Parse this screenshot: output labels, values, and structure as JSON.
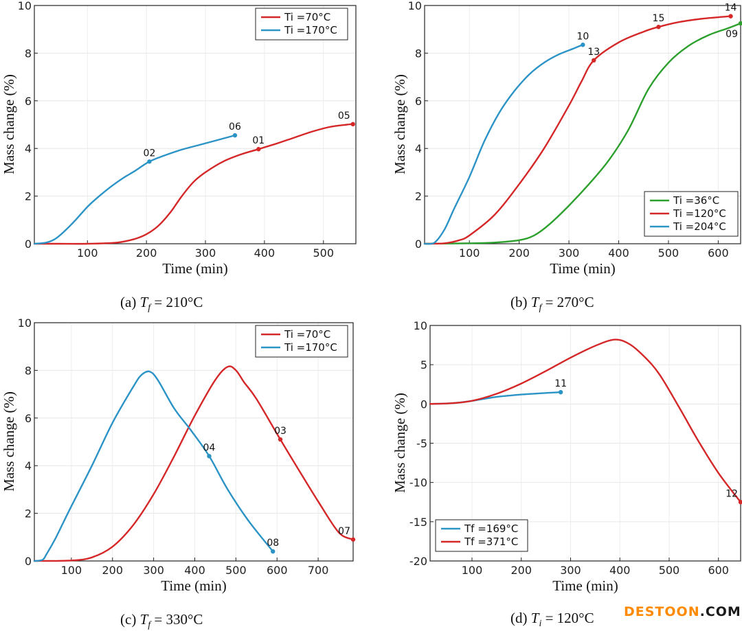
{
  "chart_data": [
    {
      "type": "line",
      "panel": "a",
      "caption": {
        "prefix": "(a)",
        "var": "T",
        "sub": "f",
        "value": "= 210°C"
      },
      "xlabel": "Time (min)",
      "ylabel": "Mass change (%)",
      "xlim": [
        10,
        555
      ],
      "ylim": [
        0,
        10
      ],
      "xticks": [
        "100",
        "200",
        "300",
        "400",
        "500"
      ],
      "xtick_values": [
        100,
        200,
        300,
        400,
        500
      ],
      "yticks": [
        "0",
        "2",
        "4",
        "6",
        "8",
        "10"
      ],
      "ytick_values": [
        0,
        2,
        4,
        6,
        8,
        10
      ],
      "grid": true,
      "legend_position": "top-right",
      "series": [
        {
          "name": "Ti =70°C",
          "color": "#d62728",
          "x": [
            10,
            50,
            100,
            150,
            180,
            200,
            220,
            240,
            260,
            280,
            300,
            330,
            360,
            390,
            420,
            450,
            480,
            510,
            540,
            550
          ],
          "y": [
            0,
            0,
            0,
            0.05,
            0.2,
            0.4,
            0.75,
            1.3,
            2.0,
            2.6,
            3.0,
            3.45,
            3.75,
            3.97,
            4.2,
            4.45,
            4.7,
            4.9,
            5.0,
            5.02
          ]
        },
        {
          "name": "Ti =170°C",
          "color": "#2b93c6",
          "x": [
            10,
            30,
            45,
            60,
            80,
            100,
            120,
            140,
            160,
            180,
            205,
            230,
            260,
            290,
            320,
            350
          ],
          "y": [
            0,
            0.05,
            0.2,
            0.5,
            1.0,
            1.55,
            2.0,
            2.4,
            2.75,
            3.05,
            3.45,
            3.7,
            3.95,
            4.15,
            4.35,
            4.55
          ]
        }
      ],
      "annotations": [
        {
          "label": "02",
          "x": 205,
          "y": 3.45,
          "color": "#2b93c6"
        },
        {
          "label": "06",
          "x": 350,
          "y": 4.55,
          "color": "#2b93c6"
        },
        {
          "label": "01",
          "x": 390,
          "y": 3.97,
          "color": "#d62728"
        },
        {
          "label": "05",
          "x": 550,
          "y": 5.02,
          "color": "#d62728"
        }
      ]
    },
    {
      "type": "line",
      "panel": "b",
      "caption": {
        "prefix": "(b)",
        "var": "T",
        "sub": "f",
        "value": "= 270°C"
      },
      "xlabel": "Time (min)",
      "ylabel": "Mass change (%)",
      "xlim": [
        10,
        645
      ],
      "ylim": [
        0,
        10
      ],
      "xticks": [
        "100",
        "200",
        "300",
        "400",
        "500",
        "600"
      ],
      "xtick_values": [
        100,
        200,
        300,
        400,
        500,
        600
      ],
      "yticks": [
        "0",
        "2",
        "4",
        "6",
        "8",
        "10"
      ],
      "ytick_values": [
        0,
        2,
        4,
        6,
        8,
        10
      ],
      "grid": true,
      "legend_position": "bottom-right",
      "series": [
        {
          "name": "Ti =36°C",
          "color": "#2ca02c",
          "x": [
            10,
            100,
            150,
            200,
            230,
            260,
            300,
            340,
            380,
            420,
            460,
            500,
            540,
            580,
            620,
            645
          ],
          "y": [
            0,
            0.02,
            0.05,
            0.15,
            0.35,
            0.8,
            1.6,
            2.5,
            3.5,
            4.8,
            6.5,
            7.6,
            8.3,
            8.75,
            9.05,
            9.25
          ]
        },
        {
          "name": "Ti =120°C",
          "color": "#d62728",
          "x": [
            10,
            50,
            80,
            100,
            150,
            200,
            250,
            300,
            325,
            350,
            400,
            450,
            480,
            520,
            570,
            625
          ],
          "y": [
            0,
            0.02,
            0.15,
            0.35,
            1.2,
            2.5,
            4.0,
            5.8,
            6.8,
            7.7,
            8.45,
            8.9,
            9.1,
            9.3,
            9.45,
            9.55
          ]
        },
        {
          "name": "Ti =204°C",
          "color": "#2b93c6",
          "x": [
            10,
            30,
            50,
            70,
            100,
            130,
            160,
            190,
            220,
            250,
            280,
            310,
            328
          ],
          "y": [
            0,
            0.05,
            0.6,
            1.5,
            2.8,
            4.3,
            5.5,
            6.4,
            7.1,
            7.6,
            7.95,
            8.2,
            8.35
          ]
        }
      ],
      "annotations": [
        {
          "label": "10",
          "x": 328,
          "y": 8.35,
          "color": "#2b93c6"
        },
        {
          "label": "13",
          "x": 350,
          "y": 7.7,
          "color": "#d62728"
        },
        {
          "label": "15",
          "x": 480,
          "y": 9.1,
          "color": "#d62728"
        },
        {
          "label": "14",
          "x": 625,
          "y": 9.55,
          "color": "#d62728"
        },
        {
          "label": "09",
          "x": 645,
          "y": 9.25,
          "color": "#2ca02c"
        }
      ]
    },
    {
      "type": "line",
      "panel": "c",
      "caption": {
        "prefix": "(c)",
        "var": "T",
        "sub": "f",
        "value": "= 330°C"
      },
      "xlabel": "Time (min)",
      "ylabel": "Mass change (%)",
      "xlim": [
        10,
        785
      ],
      "ylim": [
        0,
        10
      ],
      "xticks": [
        "100",
        "200",
        "300",
        "400",
        "500",
        "600",
        "700"
      ],
      "xtick_values": [
        100,
        200,
        300,
        400,
        500,
        600,
        700
      ],
      "yticks": [
        "0",
        "2",
        "4",
        "6",
        "8",
        "10"
      ],
      "ytick_values": [
        0,
        2,
        4,
        6,
        8,
        10
      ],
      "grid": true,
      "legend_position": "top-right",
      "series": [
        {
          "name": "Ti =70°C",
          "color": "#d62728",
          "x": [
            10,
            100,
            150,
            200,
            250,
            300,
            350,
            400,
            450,
            480,
            500,
            520,
            550,
            608,
            650,
            700,
            750,
            785
          ],
          "y": [
            0,
            0.02,
            0.15,
            0.6,
            1.5,
            2.8,
            4.4,
            6.1,
            7.6,
            8.15,
            8.0,
            7.5,
            6.8,
            5.1,
            3.9,
            2.5,
            1.2,
            0.9
          ]
        },
        {
          "name": "Ti =170°C",
          "color": "#2b93c6",
          "x": [
            10,
            30,
            40,
            60,
            80,
            100,
            150,
            200,
            250,
            270,
            290,
            310,
            350,
            390,
            435,
            480,
            530,
            590
          ],
          "y": [
            0,
            0.05,
            0.3,
            0.9,
            1.6,
            2.3,
            4.0,
            5.8,
            7.3,
            7.8,
            7.95,
            7.6,
            6.4,
            5.5,
            4.4,
            3.0,
            1.7,
            0.4
          ]
        }
      ],
      "annotations": [
        {
          "label": "04",
          "x": 435,
          "y": 4.4,
          "color": "#2b93c6"
        },
        {
          "label": "03",
          "x": 608,
          "y": 5.1,
          "color": "#d62728"
        },
        {
          "label": "08",
          "x": 590,
          "y": 0.4,
          "color": "#2b93c6"
        },
        {
          "label": "07",
          "x": 785,
          "y": 0.9,
          "color": "#d62728"
        }
      ]
    },
    {
      "type": "line",
      "panel": "d",
      "caption": {
        "prefix": "(d)",
        "var": "T",
        "sub": "i",
        "value": "= 120°C"
      },
      "xlabel": "Time (min)",
      "ylabel": "Mass change (%)",
      "xlim": [
        15,
        645
      ],
      "ylim": [
        -20,
        10
      ],
      "xticks": [
        "100",
        "200",
        "300",
        "400",
        "500",
        "600"
      ],
      "xtick_values": [
        100,
        200,
        300,
        400,
        500,
        600
      ],
      "yticks": [
        "-20",
        "-15",
        "-10",
        "-5",
        "0",
        "5",
        "10"
      ],
      "ytick_values": [
        -20,
        -15,
        -10,
        -5,
        0,
        5,
        10
      ],
      "grid": true,
      "legend_position": "bottom-left",
      "series": [
        {
          "name": "Tf =169°C",
          "color": "#2b93c6",
          "x": [
            15,
            60,
            100,
            150,
            200,
            250,
            280
          ],
          "y": [
            0,
            0.1,
            0.4,
            0.9,
            1.2,
            1.4,
            1.5
          ]
        },
        {
          "name": "Tf =371°C",
          "color": "#d62728",
          "x": [
            15,
            60,
            100,
            150,
            200,
            250,
            300,
            350,
            390,
            420,
            450,
            480,
            520,
            560,
            600,
            645
          ],
          "y": [
            0,
            0.1,
            0.4,
            1.3,
            2.6,
            4.2,
            5.9,
            7.4,
            8.2,
            7.6,
            6.0,
            3.8,
            -0.4,
            -4.8,
            -8.8,
            -12.5
          ]
        }
      ],
      "annotations": [
        {
          "label": "11",
          "x": 280,
          "y": 1.5,
          "color": "#2b93c6"
        },
        {
          "label": "12",
          "x": 645,
          "y": -12.5,
          "color": "#d62728"
        }
      ]
    }
  ],
  "watermark": {
    "part1": "DESTOON",
    "part2": ".COM"
  }
}
